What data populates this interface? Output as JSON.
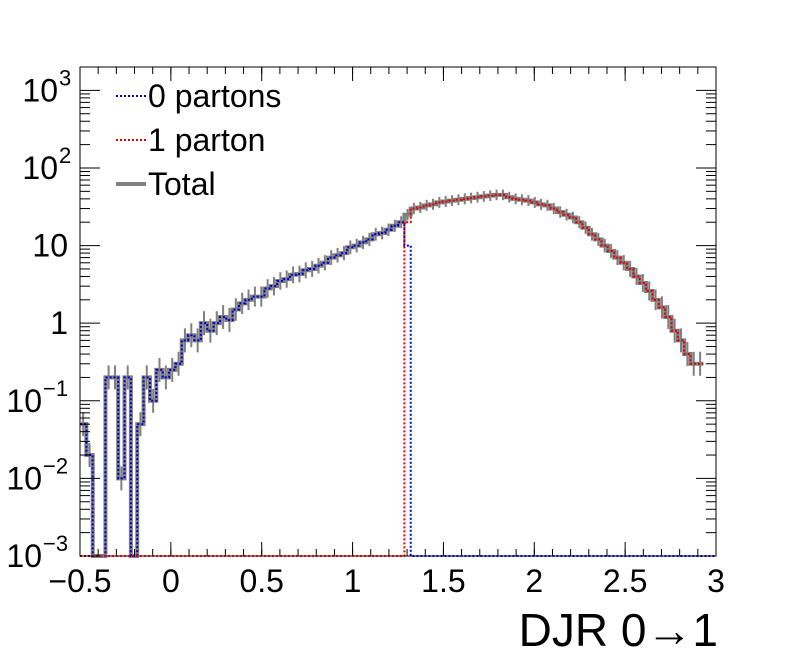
{
  "chart_data": {
    "type": "line",
    "title": "",
    "xlabel": "DJR 0→1",
    "ylabel": "",
    "xlim": [
      -0.5,
      3.0
    ],
    "ylim": [
      0.001,
      2000
    ],
    "yscale": "log",
    "grid": false,
    "legend_position": "top-left",
    "x_ticks": [
      "−0.5",
      "0",
      "0.5",
      "1",
      "1.5",
      "2",
      "2.5",
      "3"
    ],
    "x_tick_values": [
      -0.5,
      0,
      0.5,
      1,
      1.5,
      2,
      2.5,
      3
    ],
    "y_ticks": [
      {
        "value": 0.001,
        "base": "10",
        "exp": "−3"
      },
      {
        "value": 0.01,
        "base": "10",
        "exp": "−2"
      },
      {
        "value": 0.1,
        "base": "10",
        "exp": "−1"
      },
      {
        "value": 1,
        "base": "1",
        "exp": ""
      },
      {
        "value": 10,
        "base": "10",
        "exp": ""
      },
      {
        "value": 100,
        "base": "10",
        "exp": "2"
      },
      {
        "value": 1000,
        "base": "10",
        "exp": "3"
      }
    ],
    "bin_edges": [
      -0.5,
      -0.465,
      -0.43,
      -0.395,
      -0.36,
      -0.325,
      -0.29,
      -0.255,
      -0.22,
      -0.185,
      -0.15,
      -0.115,
      -0.08,
      -0.045,
      -0.01,
      0.025,
      0.06,
      0.095,
      0.13,
      0.165,
      0.2,
      0.235,
      0.27,
      0.305,
      0.34,
      0.375,
      0.41,
      0.445,
      0.48,
      0.515,
      0.55,
      0.585,
      0.62,
      0.655,
      0.69,
      0.725,
      0.76,
      0.795,
      0.83,
      0.865,
      0.9,
      0.935,
      0.97,
      1.005,
      1.04,
      1.075,
      1.11,
      1.145,
      1.18,
      1.215,
      1.25,
      1.285,
      1.32,
      1.355,
      1.39,
      1.425,
      1.46,
      1.495,
      1.53,
      1.565,
      1.6,
      1.635,
      1.67,
      1.705,
      1.74,
      1.775,
      1.81,
      1.845,
      1.88,
      1.915,
      1.95,
      1.985,
      2.02,
      2.055,
      2.09,
      2.125,
      2.16,
      2.195,
      2.23,
      2.265,
      2.3,
      2.335,
      2.37,
      2.405,
      2.44,
      2.475,
      2.51,
      2.545,
      2.58,
      2.615,
      2.65,
      2.685,
      2.72,
      2.755,
      2.79,
      2.825,
      2.86,
      2.895,
      2.93,
      2.965,
      3.0
    ],
    "series": [
      {
        "name": "0 partons",
        "color": "#0000cc",
        "style": "dotted",
        "values": [
          0.05,
          0.02,
          0.001,
          0.001,
          0.2,
          0.2,
          0.01,
          0.2,
          0.001,
          0.05,
          0.2,
          0.1,
          0.25,
          0.2,
          0.25,
          0.3,
          0.6,
          0.7,
          0.6,
          1.0,
          0.8,
          1.0,
          1.2,
          1.1,
          1.5,
          1.8,
          2.0,
          2.2,
          2.2,
          2.8,
          3.0,
          3.5,
          3.7,
          4.2,
          4.3,
          4.8,
          5.0,
          5.5,
          6.0,
          7.0,
          7.5,
          8.0,
          9.5,
          10.0,
          11.0,
          12.0,
          14.0,
          14.5,
          16.0,
          18.0,
          20.0,
          10.0,
          0.001,
          0.001,
          0.001,
          0.001,
          0.001,
          0.001,
          0.001,
          0.001,
          0.001,
          0.001,
          0.001,
          0.001,
          0.001,
          0.001,
          0.001,
          0.001,
          0.001,
          0.001,
          0.001,
          0.001,
          0.001,
          0.001,
          0.001,
          0.001,
          0.001,
          0.001,
          0.001,
          0.001,
          0.001,
          0.001,
          0.001,
          0.001,
          0.001,
          0.001,
          0.001,
          0.001,
          0.001,
          0.001,
          0.001,
          0.001,
          0.001,
          0.001,
          0.001,
          0.001,
          0.001,
          0.001,
          0.001,
          0.001
        ]
      },
      {
        "name": "1 parton",
        "color": "#dd0000",
        "style": "dotted",
        "values": [
          0.001,
          0.001,
          0.001,
          0.001,
          0.001,
          0.001,
          0.001,
          0.001,
          0.001,
          0.001,
          0.001,
          0.001,
          0.001,
          0.001,
          0.001,
          0.001,
          0.001,
          0.001,
          0.001,
          0.001,
          0.001,
          0.001,
          0.001,
          0.001,
          0.001,
          0.001,
          0.001,
          0.001,
          0.001,
          0.001,
          0.001,
          0.001,
          0.001,
          0.001,
          0.001,
          0.001,
          0.001,
          0.001,
          0.001,
          0.001,
          0.001,
          0.001,
          0.001,
          0.001,
          0.001,
          0.001,
          0.001,
          0.001,
          0.001,
          0.001,
          0.001,
          20.0,
          30.0,
          31.0,
          33.0,
          34.0,
          36.0,
          37.0,
          38.0,
          39.0,
          40.0,
          41.0,
          42.0,
          43.0,
          44.0,
          45.0,
          45.0,
          42.0,
          40.0,
          39.0,
          38.0,
          36.0,
          34.0,
          33.0,
          30.0,
          27.0,
          25.0,
          23.0,
          20.0,
          17.0,
          14.0,
          12.0,
          10.0,
          8.5,
          7.0,
          6.0,
          5.0,
          4.0,
          3.3,
          2.6,
          2.0,
          1.6,
          1.2,
          0.8,
          0.6,
          0.4,
          0.3,
          0.3
        ]
      },
      {
        "name": "Total",
        "color": "#808080",
        "style": "solid",
        "values": [
          0.05,
          0.02,
          0.001,
          0.001,
          0.2,
          0.2,
          0.01,
          0.2,
          0.001,
          0.05,
          0.2,
          0.1,
          0.25,
          0.2,
          0.25,
          0.3,
          0.6,
          0.7,
          0.6,
          1.0,
          0.8,
          1.0,
          1.2,
          1.1,
          1.5,
          1.8,
          2.0,
          2.2,
          2.2,
          2.8,
          3.0,
          3.5,
          3.7,
          4.2,
          4.3,
          4.8,
          5.0,
          5.5,
          6.0,
          7.0,
          7.5,
          8.0,
          9.5,
          10.0,
          11.0,
          12.0,
          14.0,
          14.5,
          16.0,
          18.0,
          20.0,
          25.0,
          30.0,
          31.0,
          33.0,
          34.0,
          36.0,
          37.0,
          38.0,
          39.0,
          40.0,
          41.0,
          42.0,
          43.0,
          44.0,
          45.0,
          45.0,
          42.0,
          40.0,
          39.0,
          38.0,
          36.0,
          34.0,
          33.0,
          30.0,
          27.0,
          25.0,
          23.0,
          20.0,
          17.0,
          14.0,
          12.0,
          10.0,
          8.5,
          7.0,
          6.0,
          5.0,
          4.0,
          3.3,
          2.6,
          2.0,
          1.6,
          1.2,
          0.8,
          0.6,
          0.4,
          0.3,
          0.3
        ]
      }
    ]
  }
}
